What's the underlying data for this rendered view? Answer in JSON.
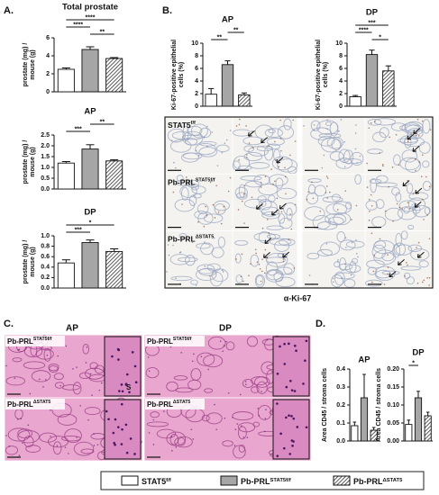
{
  "panel_labels": [
    "A.",
    "B.",
    "C.",
    "D."
  ],
  "legend": [
    {
      "base": "STAT5",
      "sup": "f/f",
      "fill": "#ffffff"
    },
    {
      "base": "Pb-PRL",
      "sup": "STAT5f/f",
      "fill": "#a6a6a6"
    },
    {
      "base": "Pb-PRL",
      "sup": "ΔSTAT5",
      "fill": "#ffffff",
      "hatch": true
    }
  ],
  "chart_data": [
    {
      "type": "bar",
      "title": "Total prostate",
      "ylabel": "prostate (mg) / mouse (g)",
      "categories": [
        null,
        null,
        null
      ],
      "values": [
        2.5,
        4.7,
        3.7
      ],
      "errors": [
        0.15,
        0.3,
        0.1
      ],
      "ylim": [
        0,
        6
      ],
      "yticks": [
        0,
        2,
        4,
        6
      ],
      "significance": [
        {
          "from": 1,
          "to": 2,
          "label": "**"
        },
        {
          "from": 0,
          "to": 1,
          "label": "****"
        },
        {
          "from": 0,
          "to": 2,
          "label": "****"
        }
      ]
    },
    {
      "type": "bar",
      "title": "AP",
      "ylabel": "prostate (mg) / mouse (g)",
      "categories": [
        null,
        null,
        null
      ],
      "values": [
        1.2,
        1.85,
        1.3
      ],
      "errors": [
        0.07,
        0.2,
        0.05
      ],
      "ylim": [
        0,
        2.5
      ],
      "yticks": [
        {
          "value": 0,
          "label": "0.0"
        },
        {
          "value": 0.5,
          "label": "0.5"
        },
        {
          "value": 1,
          "label": "1.0"
        },
        {
          "value": 1.5,
          "label": "1.5"
        },
        {
          "value": 2,
          "label": "2.0"
        },
        {
          "value": 2.5,
          "label": "2.5"
        }
      ],
      "significance": [
        {
          "from": 0,
          "to": 1,
          "label": "***"
        },
        {
          "from": 1,
          "to": 2,
          "label": "**"
        }
      ]
    },
    {
      "type": "bar",
      "title": "DP",
      "ylabel": "prostate (mg) / mouse (g)",
      "categories": [
        null,
        null,
        null
      ],
      "values": [
        0.48,
        0.87,
        0.7
      ],
      "errors": [
        0.06,
        0.05,
        0.05
      ],
      "ylim": [
        0,
        1
      ],
      "yticks": [
        {
          "value": 0,
          "label": "0.0"
        },
        0.2,
        0.4,
        0.6,
        0.8,
        {
          "value": 1,
          "label": "1.0"
        }
      ],
      "significance": [
        {
          "from": 0,
          "to": 1,
          "label": "***"
        },
        {
          "from": 0,
          "to": 2,
          "label": "*"
        }
      ]
    },
    {
      "type": "bar",
      "title": "AP",
      "ylabel": "Ki-67-positive epithelial cells (%)",
      "categories": [
        null,
        null,
        null
      ],
      "values": [
        1.9,
        6.6,
        1.8
      ],
      "errors": [
        0.9,
        0.6,
        0.3
      ],
      "ylim": [
        0,
        10
      ],
      "yticks": [
        0,
        2,
        4,
        6,
        8,
        10
      ],
      "significance": [
        {
          "from": 0,
          "to": 1,
          "label": "**"
        },
        {
          "from": 1,
          "to": 2,
          "label": "**"
        }
      ]
    },
    {
      "type": "bar",
      "title": "DP",
      "ylabel": "Ki-67-positive epithelial cells (%)",
      "categories": [
        null,
        null,
        null
      ],
      "values": [
        1.5,
        8.2,
        5.6
      ],
      "errors": [
        0.2,
        0.7,
        0.8
      ],
      "ylim": [
        0,
        10
      ],
      "yticks": [
        0,
        2,
        4,
        6,
        8,
        10
      ],
      "significance": [
        {
          "from": 1,
          "to": 2,
          "label": "*"
        },
        {
          "from": 0,
          "to": 1,
          "label": "****"
        },
        {
          "from": 0,
          "to": 2,
          "label": "***"
        }
      ]
    },
    {
      "type": "bar",
      "title": "AP",
      "ylabel": "Area CD45 / stroma cells",
      "categories": [
        null,
        null,
        null
      ],
      "values": [
        0.085,
        0.24,
        0.06
      ],
      "errors": [
        0.02,
        0.13,
        0.015
      ],
      "ylim": [
        0,
        0.4
      ],
      "yticks": [
        {
          "value": 0,
          "label": "0.0"
        },
        0.1,
        0.2,
        0.3,
        0.4
      ],
      "significance": []
    },
    {
      "type": "bar",
      "title": "DP",
      "ylabel": "Area CD45 / stroma cells",
      "categories": [
        null,
        null,
        null
      ],
      "values": [
        0.046,
        0.12,
        0.07
      ],
      "errors": [
        0.012,
        0.018,
        0.01
      ],
      "ylim": [
        0,
        0.2
      ],
      "yticks": [
        {
          "value": 0,
          "label": "0.00"
        },
        0.05,
        {
          "value": 0.1,
          "label": "0.10"
        },
        0.15,
        {
          "value": 0.2,
          "label": "0.20"
        }
      ],
      "significance": [
        {
          "from": 0,
          "to": 1,
          "label": "*"
        }
      ]
    }
  ],
  "panel_b": {
    "row_labels": [
      {
        "base": "STAT5",
        "sup": "f/f"
      },
      {
        "base": "Pb-PRL",
        "sup": "STAT5f/f"
      },
      {
        "base": "Pb-PRL",
        "sup": "ΔSTAT5"
      }
    ],
    "stain": "α-Ki-67"
  },
  "panel_c": {
    "titles": [
      "AP",
      "DP"
    ],
    "labels": [
      {
        "base": "Pb-PRL",
        "sup": "STAT5f/f"
      },
      {
        "base": "Pb-PRL",
        "sup": "ΔSTAT5"
      },
      {
        "base": "Pb-PRL",
        "sup": "STAT5f/f"
      },
      {
        "base": "Pb-PRL",
        "sup": "ΔSTAT5"
      }
    ],
    "inset_letter": "S"
  }
}
